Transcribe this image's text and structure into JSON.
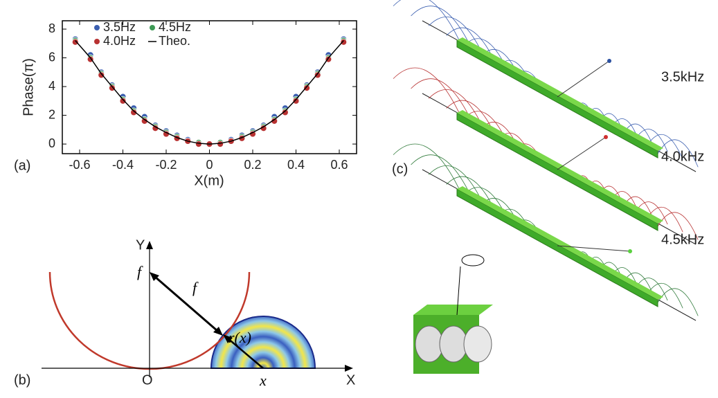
{
  "chart_data": {
    "type": "scatter",
    "xlabel": "X(m)",
    "ylabel": "Phase(π)",
    "xlim": [
      -0.68,
      0.68
    ],
    "ylim": [
      -0.67,
      8.58
    ],
    "xticks": [
      -0.6,
      -0.4,
      -0.2,
      0,
      0.2,
      0.4,
      0.6
    ],
    "yticks": [
      0,
      2,
      4,
      6,
      8
    ],
    "legend": "upper-left",
    "x": [
      -0.62,
      -0.55,
      -0.5,
      -0.45,
      -0.4,
      -0.35,
      -0.3,
      -0.25,
      -0.2,
      -0.15,
      -0.1,
      -0.05,
      0,
      0.05,
      0.1,
      0.15,
      0.2,
      0.25,
      0.3,
      0.35,
      0.4,
      0.45,
      0.5,
      0.55,
      0.62
    ],
    "series": [
      {
        "name": "3.5Hz",
        "color": "#3b5fb0",
        "values": [
          7.3,
          6.2,
          5.0,
          4.1,
          3.3,
          2.5,
          1.9,
          1.3,
          0.9,
          0.6,
          0.3,
          0.1,
          0,
          0.1,
          0.3,
          0.6,
          0.9,
          1.3,
          1.9,
          2.5,
          3.3,
          4.1,
          5.0,
          6.2,
          7.3
        ]
      },
      {
        "name": "4.5Hz",
        "color": "#3d9a55",
        "values": [
          7.2,
          6.0,
          4.9,
          4.0,
          3.1,
          2.3,
          1.7,
          1.2,
          0.8,
          0.5,
          0.2,
          0.1,
          0,
          0.1,
          0.2,
          0.5,
          0.8,
          1.2,
          1.7,
          2.3,
          3.1,
          4.0,
          4.9,
          6.0,
          7.2
        ]
      },
      {
        "name": "4.0Hz",
        "color": "#b83232",
        "values": [
          7.1,
          5.9,
          4.8,
          3.9,
          3.0,
          2.2,
          1.6,
          1.1,
          0.7,
          0.4,
          0.2,
          0,
          0,
          0,
          0.2,
          0.4,
          0.7,
          1.1,
          1.6,
          2.2,
          3.0,
          3.9,
          4.8,
          5.9,
          7.1
        ]
      },
      {
        "name": "Theo.",
        "type": "line",
        "color": "#000000",
        "values": [
          7.2,
          6.0,
          4.9,
          4.0,
          3.1,
          2.3,
          1.7,
          1.2,
          0.8,
          0.45,
          0.2,
          0.05,
          0,
          0.05,
          0.2,
          0.45,
          0.8,
          1.2,
          1.7,
          2.3,
          3.1,
          4.0,
          4.9,
          6.0,
          7.2
        ]
      }
    ]
  },
  "panels": {
    "a": "(a)",
    "b": "(b)",
    "c": "(c)"
  },
  "diagram_b": {
    "y_axis": "Y",
    "x_axis": "X",
    "origin": "O",
    "focus": "f",
    "distance": "f",
    "radius": "r(x)",
    "position": "x"
  },
  "frequencies": [
    "3.5kHz",
    "4.0kHz",
    "4.5kHz"
  ]
}
